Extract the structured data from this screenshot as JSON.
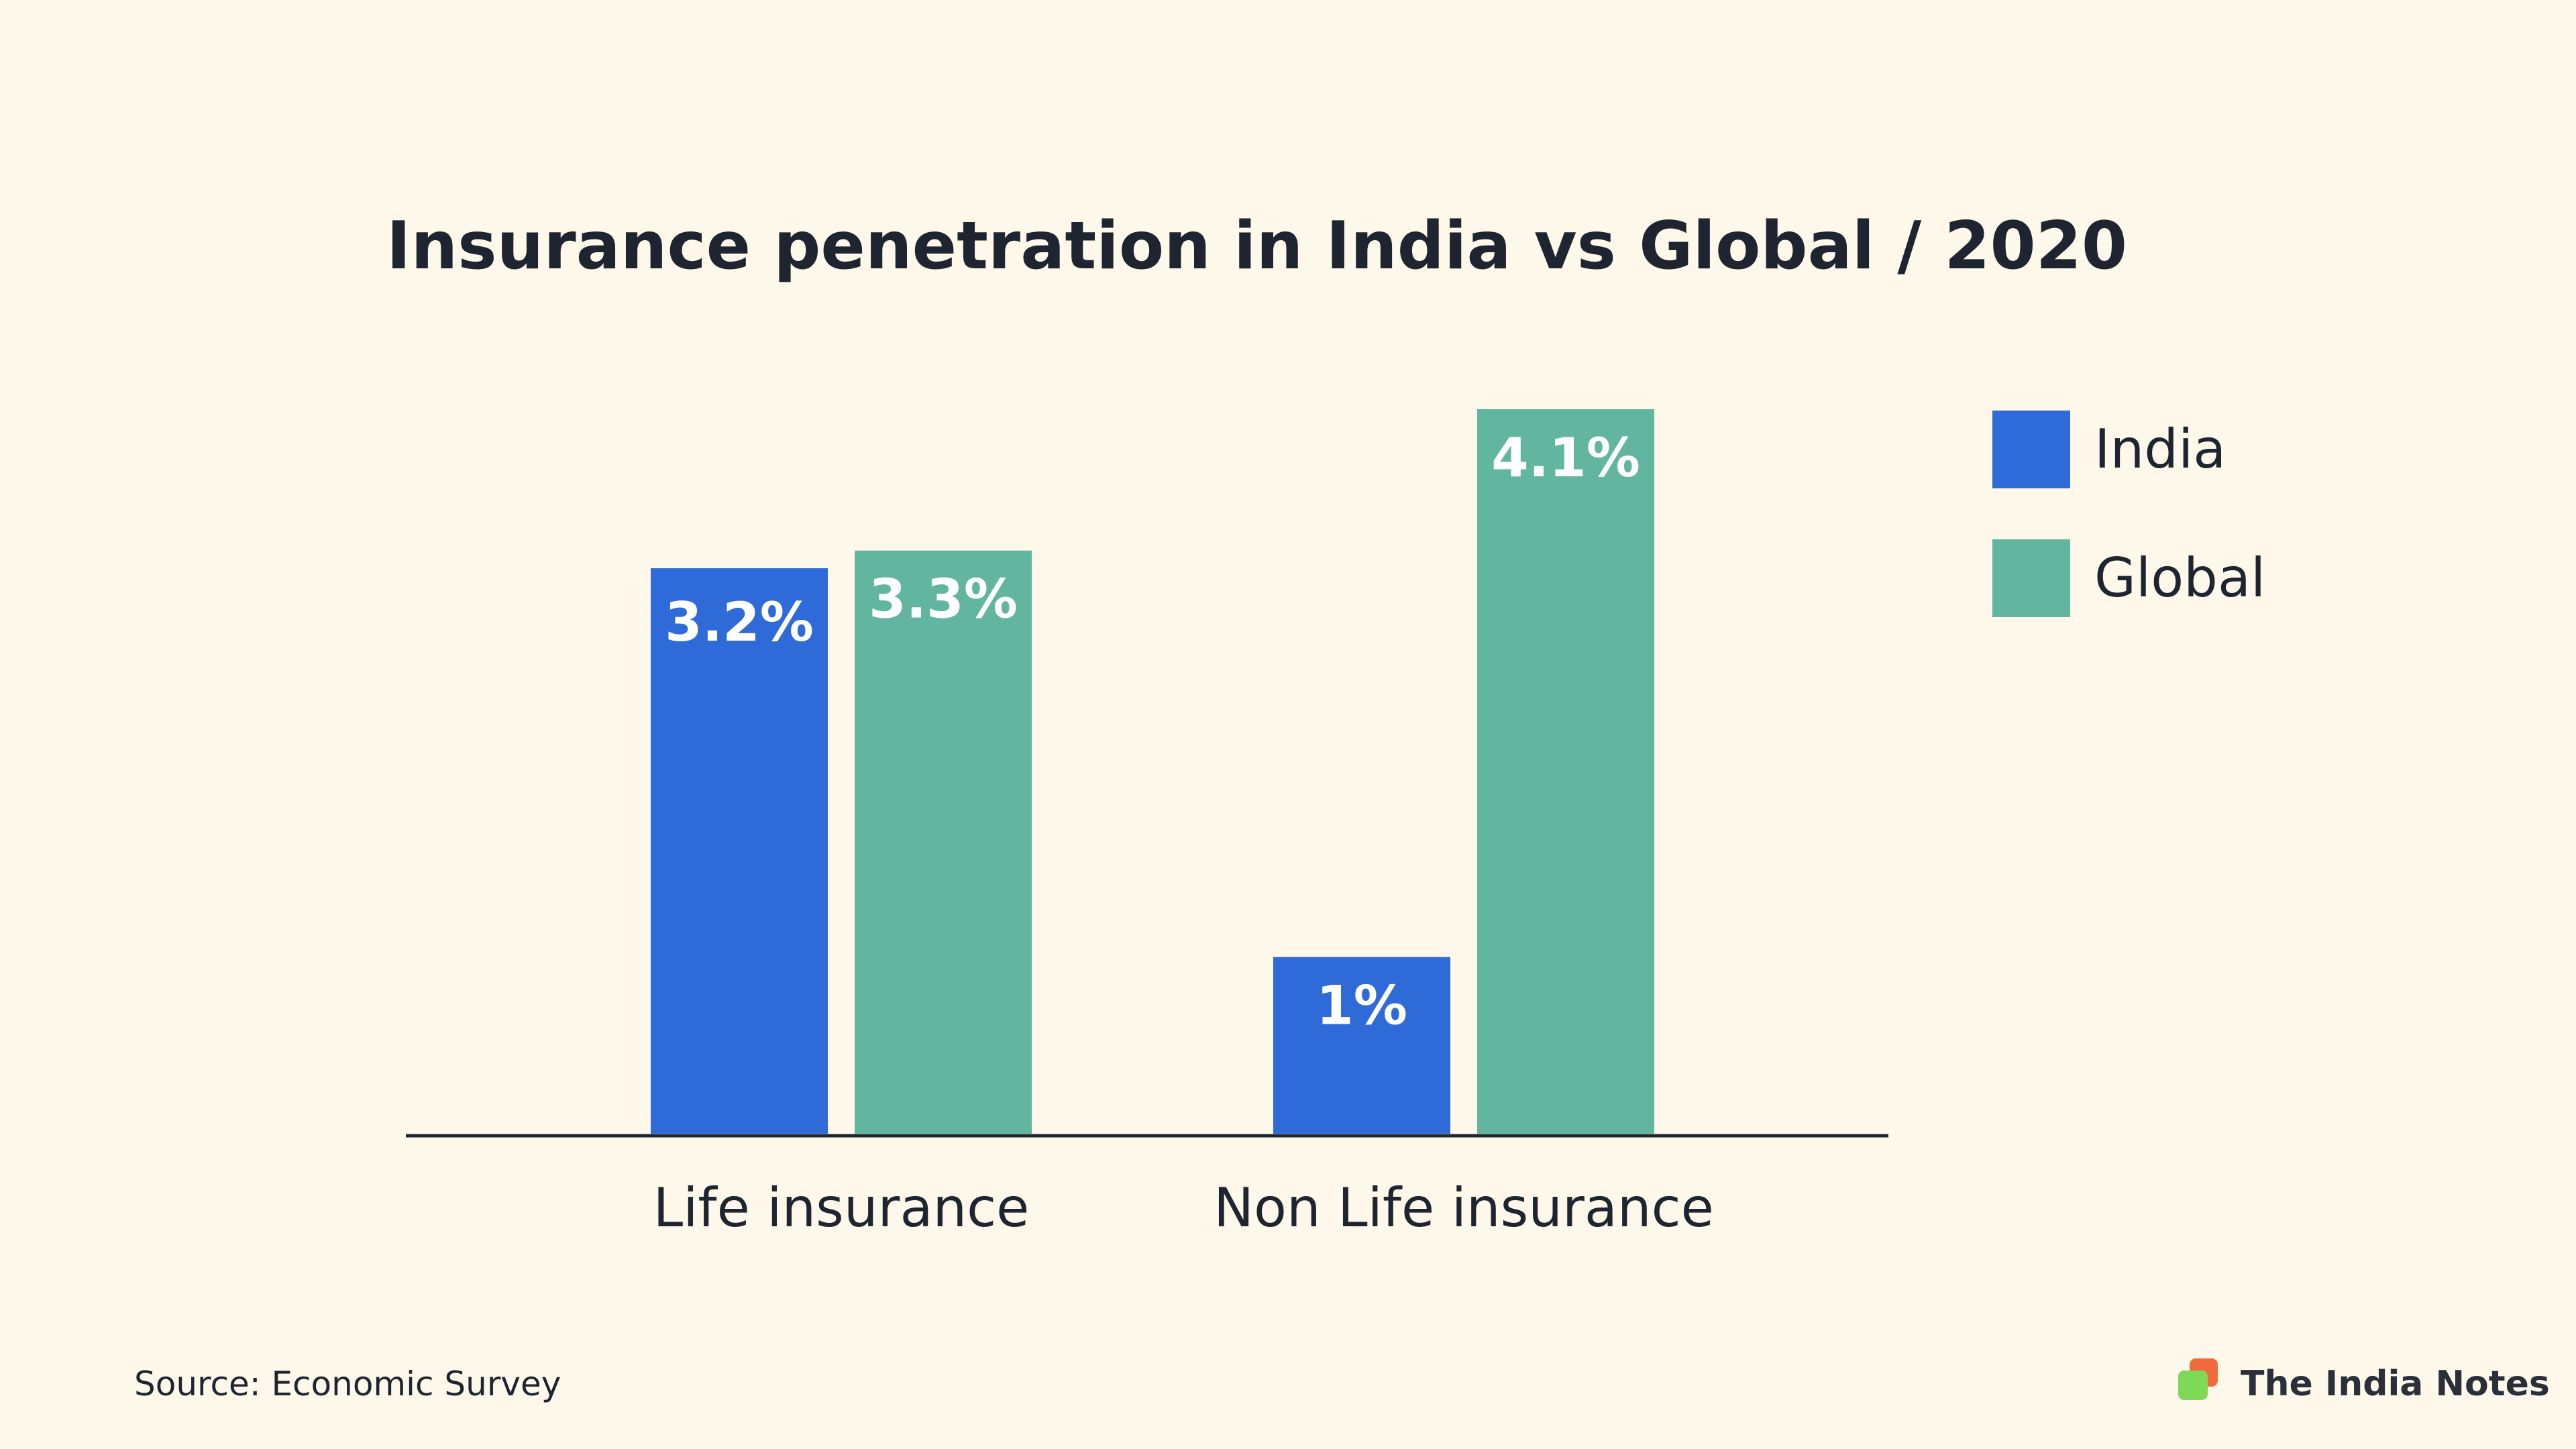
{
  "chart_data": {
    "type": "bar",
    "title": "Insurance penetration in India vs Global / 2020",
    "categories": [
      "Life insurance",
      "Non Life insurance"
    ],
    "series": [
      {
        "name": "India",
        "values": [
          3.2,
          1
        ],
        "labels": [
          "3.2%",
          "1%"
        ],
        "color": "#2f6ad9"
      },
      {
        "name": "Global",
        "values": [
          3.3,
          4.1
        ],
        "labels": [
          "3.3%",
          "4.1%"
        ],
        "color": "#62b6a0"
      }
    ],
    "ylim": [
      0,
      4.1
    ],
    "grid": false,
    "legend_position": "right"
  },
  "footer": {
    "source": "Source: Economic Survey",
    "brand": "The India Notes"
  },
  "colors": {
    "background": "#fdf8ea",
    "text": "#1f2530",
    "axis": "#1f2530",
    "brand_logo_front": "#7ed957",
    "brand_logo_back": "#f06a3d"
  }
}
